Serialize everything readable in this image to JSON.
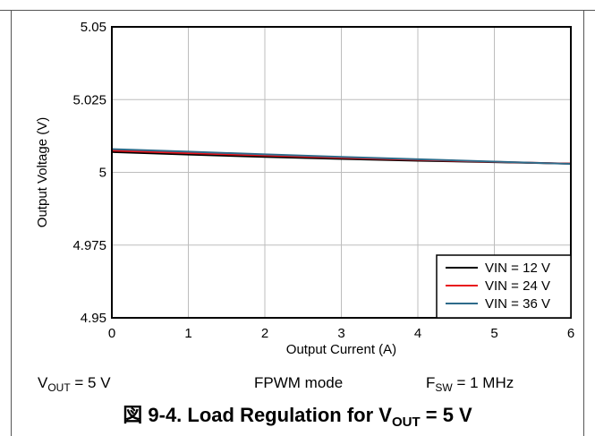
{
  "chart_data": {
    "type": "line",
    "xlabel": "Output Current (A)",
    "ylabel": "Output Voltage (V)",
    "xlim": [
      0,
      6
    ],
    "ylim": [
      4.95,
      5.05
    ],
    "x_ticks": [
      0,
      1,
      2,
      3,
      4,
      5,
      6
    ],
    "x_tick_labels": [
      "0",
      "1",
      "2",
      "3",
      "4",
      "5",
      "6"
    ],
    "y_ticks": [
      4.95,
      4.975,
      5,
      5.025,
      5.05
    ],
    "y_tick_labels": [
      "4.95",
      "4.975",
      "5",
      "5.025",
      "5.05"
    ],
    "grid": true,
    "legend_position": "bottom-right",
    "x": [
      0,
      1,
      2,
      3,
      4,
      5,
      6
    ],
    "series": [
      {
        "name": "VIN = 12 V",
        "color": "#000000",
        "values": [
          5.007,
          5.0061,
          5.0053,
          5.0046,
          5.004,
          5.0035,
          5.003
        ]
      },
      {
        "name": "VIN = 24 V",
        "color": "#e8141c",
        "values": [
          5.0075,
          5.0066,
          5.0058,
          5.005,
          5.0043,
          5.0036,
          5.003
        ]
      },
      {
        "name": "VIN = 36 V",
        "color": "#2e6b8a",
        "values": [
          5.008,
          5.0071,
          5.0062,
          5.0053,
          5.0045,
          5.0037,
          5.0029
        ]
      }
    ]
  },
  "conditions": {
    "vout_v": "V",
    "vout_sub": "OUT",
    "vout_rest": " = 5 V",
    "mode": "FPWM mode",
    "fsw_f": "F",
    "fsw_sub": "SW",
    "fsw_rest": " = 1 MHz"
  },
  "caption": {
    "prefix": "図 9-4. Load Regulation for V",
    "sub": "OUT",
    "suffix": " = 5 V"
  }
}
